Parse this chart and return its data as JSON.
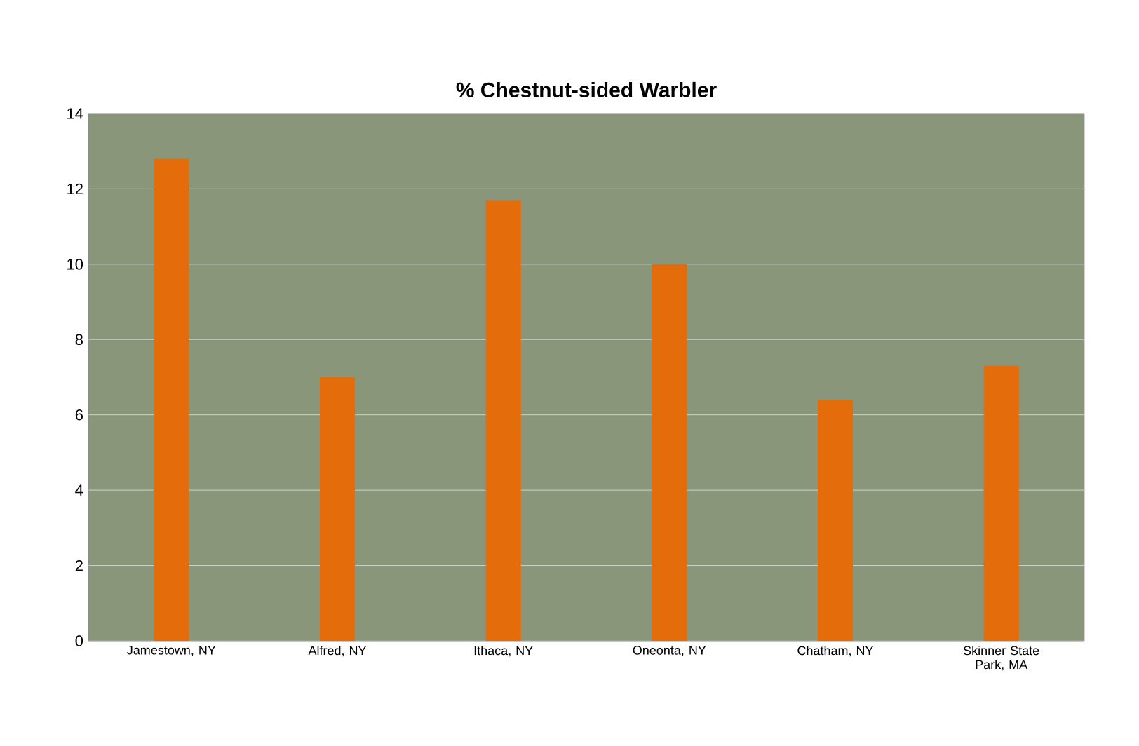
{
  "chart_data": {
    "type": "bar",
    "title": "% Chestnut-sided Warbler",
    "categories": [
      "Jamestown, NY",
      "Alfred, NY",
      "Ithaca, NY",
      "Oneonta, NY",
      "Chatham, NY",
      "Skinner State Park, MA"
    ],
    "values": [
      12.8,
      7.0,
      11.7,
      10.0,
      6.4,
      7.3
    ],
    "color": "#e46c0a",
    "ylim": [
      0,
      14
    ],
    "yticks": [
      0,
      2,
      4,
      6,
      8,
      10,
      12,
      14
    ],
    "grid": "y"
  }
}
